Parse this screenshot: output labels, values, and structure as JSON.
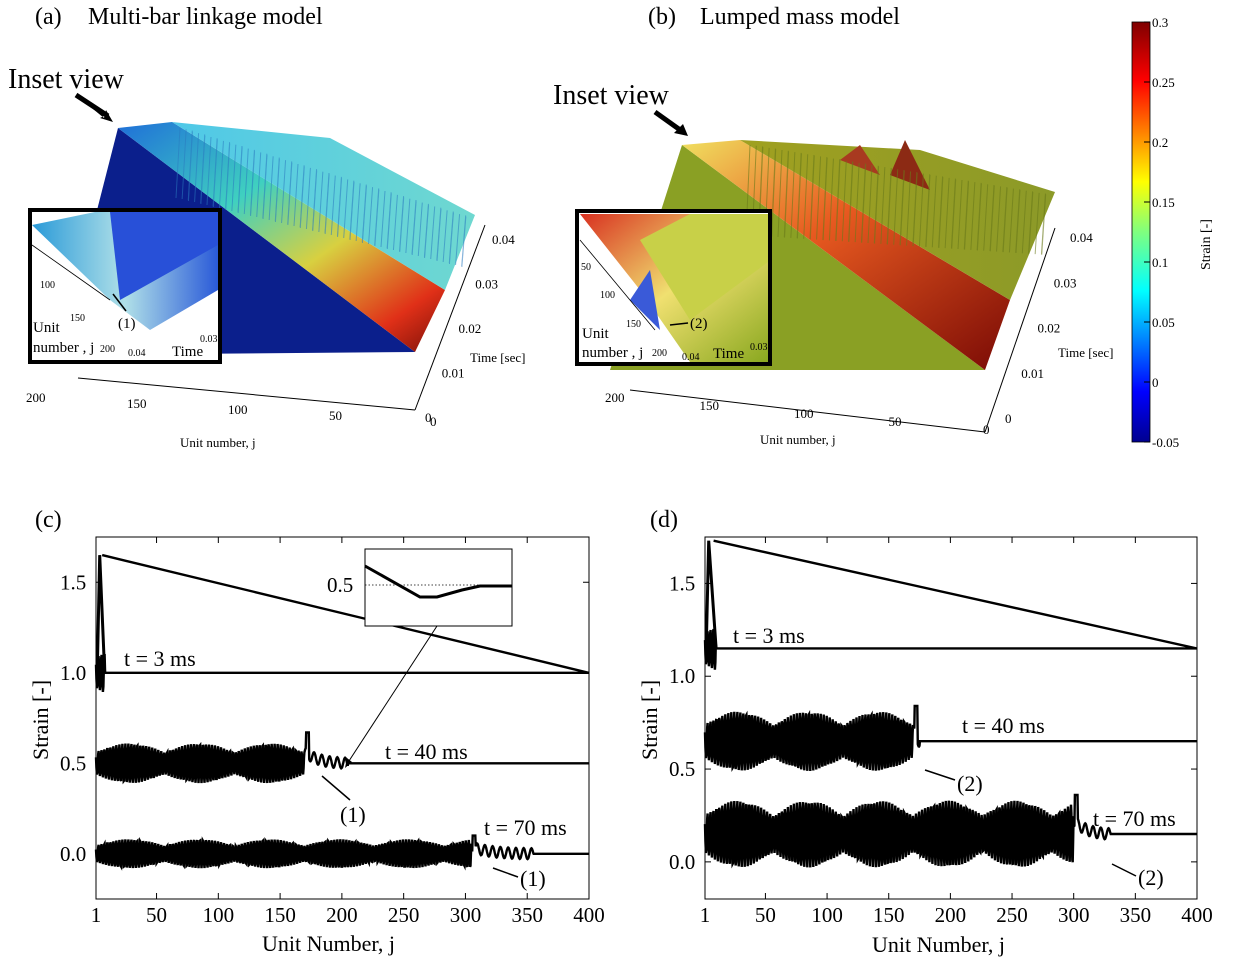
{
  "panels": {
    "a": {
      "letter": "(a)",
      "title": "Multi-bar linkage model",
      "inset_view": "Inset view",
      "xlabel": "Unit number, j",
      "ylabel": "Time [sec]",
      "x_ticks": [
        "200",
        "150",
        "100",
        "50",
        "0"
      ],
      "y_ticks": [
        "0",
        "0.01",
        "0.02",
        "0.03",
        "0.04"
      ],
      "inset": {
        "unit_label_1": "Unit",
        "unit_label_2": "number , j",
        "time_label": "Time",
        "unit_ticks": [
          "100",
          "150",
          "200"
        ],
        "time_ticks": [
          "0.04",
          "0.03"
        ],
        "marker": "(1)"
      }
    },
    "b": {
      "letter": "(b)",
      "title": "Lumped mass model",
      "inset_view": "Inset view",
      "xlabel": "Unit number, j",
      "ylabel": "Time [sec]",
      "x_ticks": [
        "200",
        "150",
        "100",
        "50",
        "0"
      ],
      "y_ticks": [
        "0",
        "0.01",
        "0.02",
        "0.03",
        "0.04"
      ],
      "inset": {
        "unit_label_1": "Unit",
        "unit_label_2": "number , j",
        "time_label": "Time",
        "unit_ticks": [
          "50",
          "100",
          "150",
          "200"
        ],
        "time_ticks": [
          "0.04",
          "0.03"
        ],
        "marker": "(2)"
      }
    }
  },
  "colorbar": {
    "label": "Strain [-]",
    "ticks": [
      "0.3",
      "0.25",
      "0.2",
      "0.15",
      "0.1",
      "0.05",
      "0",
      "-0.05"
    ],
    "min": -0.05,
    "max": 0.3
  },
  "chart_data": [
    {
      "type": "line",
      "panel": "(c)",
      "xlabel": "Unit Number, j",
      "ylabel": "Strain [-]",
      "xlim": [
        1,
        400
      ],
      "ylim": [
        -0.25,
        1.75
      ],
      "x_ticks": [
        "1",
        "50",
        "100",
        "150",
        "200",
        "250",
        "300",
        "350",
        "400"
      ],
      "y_ticks": [
        "0.0",
        "0.5",
        "1.0",
        "1.5"
      ],
      "series_labels": [
        "t = 3 ms",
        "t = 40 ms",
        "t = 70 ms"
      ],
      "series": [
        {
          "baseline": 1.0,
          "peak": 1.65,
          "front": 8,
          "osc_start": 1,
          "osc_end": 8,
          "amp": 0.15
        },
        {
          "baseline": 0.5,
          "peak": 0.67,
          "front": 205,
          "osc_start": 1,
          "osc_end": 170,
          "amp": 0.11
        },
        {
          "baseline": 0.0,
          "peak": 0.1,
          "front": 355,
          "osc_start": 1,
          "osc_end": 305,
          "amp": 0.08
        }
      ],
      "markers": [
        "(1)",
        "(1)"
      ],
      "inset_tick": "0.5"
    },
    {
      "type": "line",
      "panel": "(d)",
      "xlabel": "Unit Number, j",
      "ylabel": "Strain [-]",
      "xlim": [
        1,
        400
      ],
      "ylim": [
        -0.2,
        1.75
      ],
      "x_ticks": [
        "1",
        "50",
        "100",
        "150",
        "200",
        "250",
        "300",
        "350",
        "400"
      ],
      "y_ticks": [
        "0.0",
        "0.5",
        "1.0",
        "1.5"
      ],
      "series_labels": [
        "t = 3 ms",
        "t = 40 ms",
        "t = 70 ms"
      ],
      "series": [
        {
          "baseline": 1.15,
          "peak": 1.73,
          "front": 10,
          "osc_start": 1,
          "osc_end": 10,
          "amp": 0.15
        },
        {
          "baseline": 0.65,
          "peak": 0.84,
          "front": 175,
          "osc_start": 1,
          "osc_end": 170,
          "amp": 0.16
        },
        {
          "baseline": 0.15,
          "peak": 0.36,
          "front": 330,
          "osc_start": 1,
          "osc_end": 300,
          "amp": 0.18
        }
      ],
      "markers": [
        "(2)",
        "(2)"
      ]
    }
  ]
}
